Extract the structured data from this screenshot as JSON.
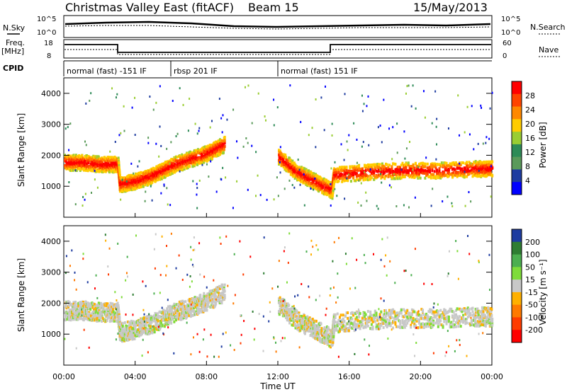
{
  "header": {
    "title": "Christmas Valley East (fitACF)",
    "beam": "Beam 15",
    "date": "15/May/2013"
  },
  "panels": {
    "nsky_label": "N.Sky",
    "nsearch_label": "N.Search",
    "freq_label": "Freq.",
    "freq_unit": "[MHz]",
    "nave_label": "Nave",
    "cpid_label": "CPID",
    "cpid_segments": [
      {
        "label": "normal (fast) -151 IF",
        "start_hour": 0
      },
      {
        "label": "rbsp 201 IF",
        "start_hour": 6
      },
      {
        "label": "normal (fast) 151 IF",
        "start_hour": 12
      }
    ],
    "noise_left_ticks": [
      "10^5",
      "10^0"
    ],
    "noise_right_ticks": [
      "10^5",
      "10^0"
    ],
    "freq_left_ticks": [
      "18",
      "8"
    ],
    "nave_right_ticks": [
      "60",
      "0"
    ]
  },
  "chart_data": [
    {
      "type": "heatmap",
      "title": "",
      "ylabel": "Slant Range [km]",
      "xlabel": "",
      "xlim_hours": [
        0,
        24
      ],
      "ylim": [
        0,
        4500
      ],
      "yticks": [
        "4000",
        "3000",
        "2000",
        "1000"
      ],
      "colorbar": {
        "label": "Power [dB]",
        "ticks": [
          "28",
          "24",
          "20",
          "16",
          "12",
          "8",
          "4"
        ],
        "colors": [
          "#ff0000",
          "#ff4400",
          "#ff8800",
          "#ffcc00",
          "#9acd32",
          "#2e8b57",
          "#5a9a5a",
          "#1e3ca0",
          "#0000ff"
        ]
      },
      "series": [
        {
          "name": "",
          "x": [
            0,
            1,
            2,
            3,
            3.1,
            4,
            5,
            6,
            7,
            8,
            9
          ],
          "y": [
            1800,
            1800,
            1750,
            1750,
            1100,
            1200,
            1400,
            1700,
            1900,
            2100,
            2400
          ]
        },
        {
          "name": "",
          "x": [
            12,
            13,
            14,
            15,
            15.1,
            17,
            19,
            21,
            23,
            24
          ],
          "y": [
            2000,
            1500,
            1200,
            900,
            1400,
            1500,
            1550,
            1550,
            1600,
            1600
          ]
        }
      ]
    },
    {
      "type": "heatmap",
      "title": "",
      "ylabel": "Slant Range [km]",
      "xlabel": "Time UT",
      "xlim_hours": [
        0,
        24
      ],
      "ylim": [
        0,
        4500
      ],
      "yticks": [
        "4000",
        "3000",
        "2000",
        "1000"
      ],
      "xticks": [
        "00:00",
        "04:00",
        "08:00",
        "12:00",
        "16:00",
        "20:00",
        "00:00"
      ],
      "colorbar": {
        "label": "Velocity [m s⁻¹]",
        "ticks": [
          "200",
          "100",
          "50",
          "15",
          "-15",
          "-50",
          "-100",
          "-200"
        ],
        "colors": [
          "#1e3ca0",
          "#2e7d32",
          "#4caf50",
          "#7fdc3a",
          "#c8c8c8",
          "#ffb000",
          "#ff7a00",
          "#ff3c00",
          "#ff0000"
        ]
      }
    }
  ]
}
